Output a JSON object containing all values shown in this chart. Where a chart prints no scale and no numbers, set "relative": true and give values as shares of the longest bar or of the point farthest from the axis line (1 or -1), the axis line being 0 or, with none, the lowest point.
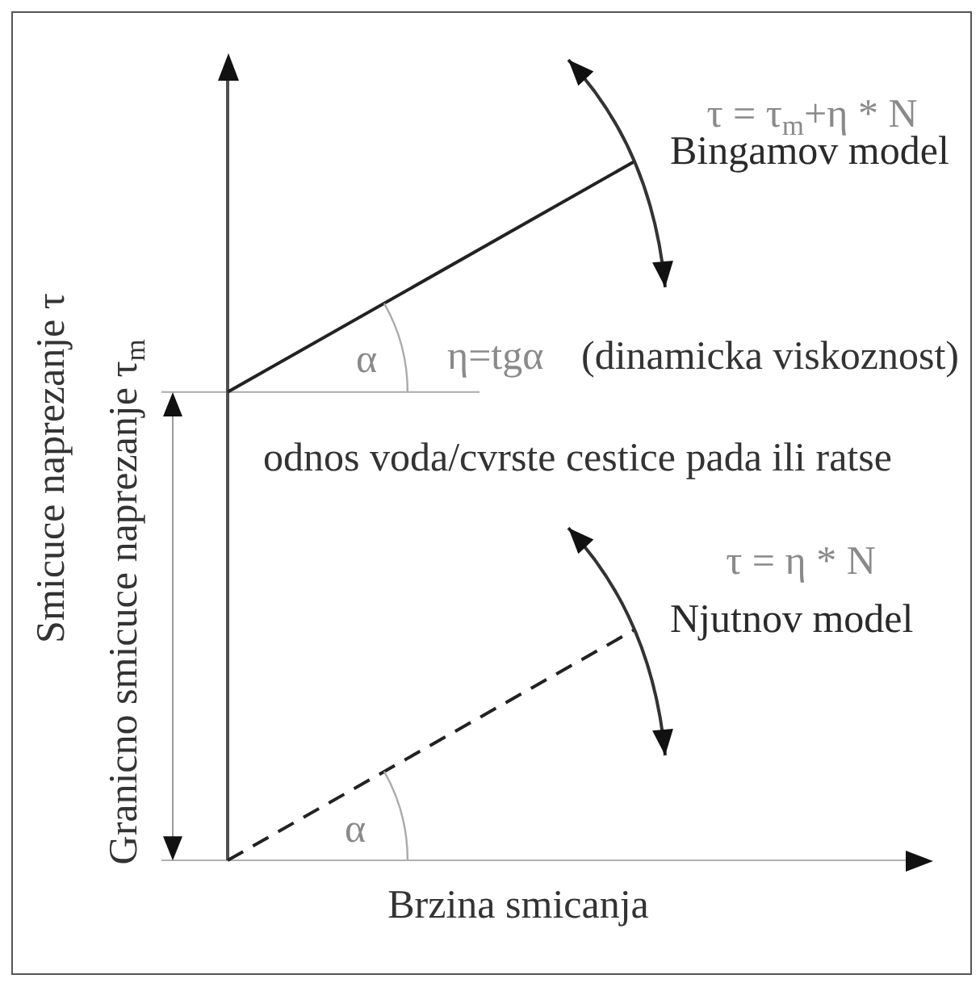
{
  "chart_data": {
    "type": "line",
    "categories": [
      null,
      null
    ],
    "relative": true,
    "series": [
      {
        "name": "Bingamov model",
        "color": "#222222",
        "values": [
          0.67,
          1
        ]
      },
      {
        "name": "Njutnov model",
        "color": "#222222",
        "values": [
          0,
          0.33
        ],
        "line_style": "dashed"
      }
    ],
    "xlabel": "Brzina smicanja",
    "ylabel": "Smicuce naprezanje τ",
    "ref_lines": [
      {
        "axis": "y",
        "value": 0.67,
        "label": "Granicno smicuce naprezanje τ$_{m}$",
        "color": "#aaaaaa"
      }
    ],
    "annotations": [
      "τ = τ$_{m}$+η * N",
      "α",
      "η=tgα",
      "(dinamicka viskoznost)",
      "odnos voda/cvrste cestice pada ili ratse",
      "τ = η * N",
      "α"
    ]
  }
}
